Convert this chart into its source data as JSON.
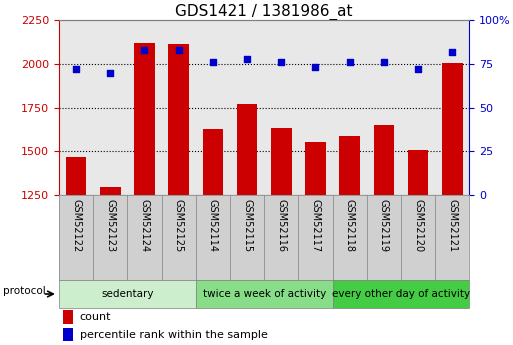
{
  "title": "GDS1421 / 1381986_at",
  "samples": [
    "GSM52122",
    "GSM52123",
    "GSM52124",
    "GSM52125",
    "GSM52114",
    "GSM52115",
    "GSM52116",
    "GSM52117",
    "GSM52118",
    "GSM52119",
    "GSM52120",
    "GSM52121"
  ],
  "counts": [
    1470,
    1295,
    2120,
    2115,
    1630,
    1770,
    1635,
    1555,
    1590,
    1650,
    1510,
    2005
  ],
  "percentiles": [
    72,
    70,
    83,
    83,
    76,
    78,
    76,
    73,
    76,
    76,
    72,
    82
  ],
  "ylim_left": [
    1250,
    2250
  ],
  "ylim_right": [
    0,
    100
  ],
  "yticks_left": [
    1250,
    1500,
    1750,
    2000,
    2250
  ],
  "yticks_right": [
    0,
    25,
    50,
    75,
    100
  ],
  "hlines": [
    2000,
    1750,
    1500
  ],
  "groups": [
    {
      "label": "sedentary",
      "start": 0,
      "end": 4,
      "color": "#cceecc"
    },
    {
      "label": "twice a week of activity",
      "start": 4,
      "end": 8,
      "color": "#88dd88"
    },
    {
      "label": "every other day of activity",
      "start": 8,
      "end": 12,
      "color": "#44cc44"
    }
  ],
  "bar_color": "#cc0000",
  "dot_color": "#0000cc",
  "background_color": "#ffffff",
  "plot_bg_color": "#e8e8e8",
  "xlabel_bg_color": "#d0d0d0",
  "title_fontsize": 11,
  "tick_fontsize": 8,
  "sample_fontsize": 7
}
